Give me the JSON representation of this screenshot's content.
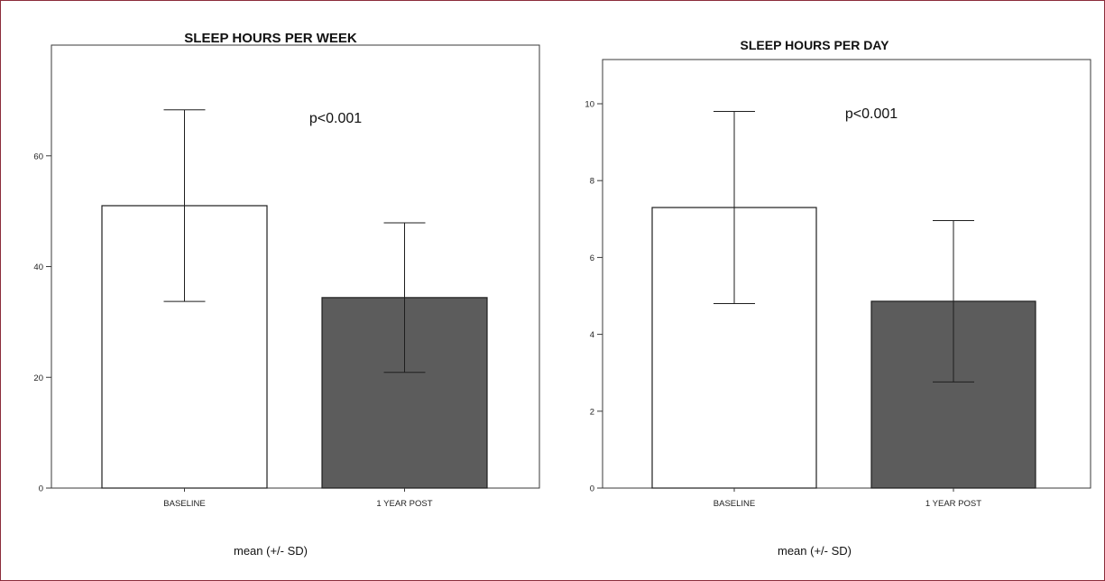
{
  "chart_data": [
    {
      "type": "bar",
      "title": "SLEEP HOURS PER WEEK",
      "categories": [
        "BASELINE",
        "1 YEAR POST"
      ],
      "values": [
        51.0,
        34.4
      ],
      "sd": [
        17.3,
        13.5
      ],
      "bar_colors": [
        "#ffffff",
        "#5c5c5c"
      ],
      "ylim": [
        0,
        80
      ],
      "yticks": [
        0,
        20,
        40,
        60
      ],
      "annotation": "p<0.001",
      "xlabel": "mean (+/- SD)",
      "grid": false
    },
    {
      "type": "bar",
      "title": "SLEEP HOURS PER DAY",
      "categories": [
        "BASELINE",
        "1 YEAR POST"
      ],
      "values": [
        7.3,
        4.86
      ],
      "sd": [
        2.5,
        2.1
      ],
      "bar_colors": [
        "#ffffff",
        "#5c5c5c"
      ],
      "ylim": [
        0,
        11.15
      ],
      "yticks": [
        0,
        2,
        4,
        6,
        8,
        10
      ],
      "annotation": "p<0.001",
      "xlabel": "mean (+/- SD)",
      "grid": false
    }
  ]
}
